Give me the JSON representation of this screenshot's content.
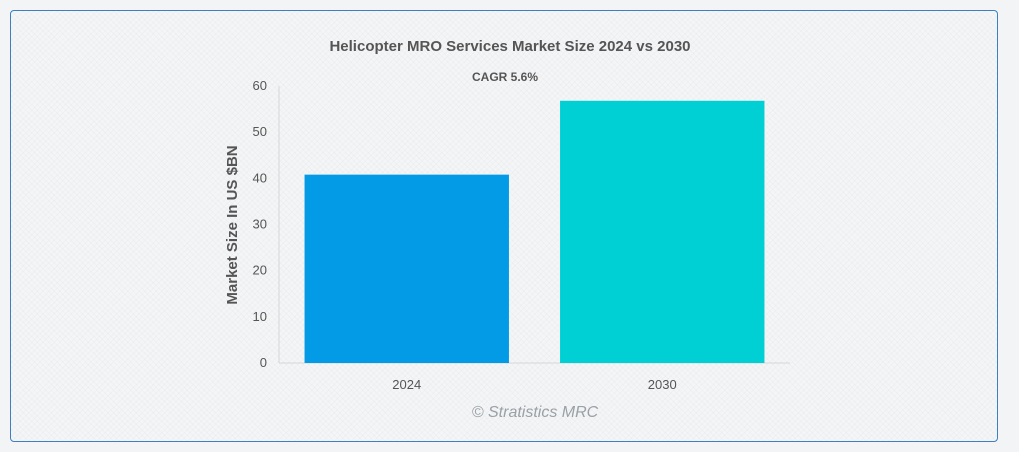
{
  "chart_data": {
    "type": "bar",
    "title": "Helicopter MRO Services Market Size 2024 vs 2030",
    "subtitle": "CAGR 5.6%",
    "categories": [
      "2024",
      "2030"
    ],
    "values": [
      40.8,
      56.8
    ],
    "colors": [
      "#039be5",
      "#00d0d4"
    ],
    "ylabel": "Market Size In US $BN",
    "xlabel": "",
    "ylim": [
      0,
      60
    ],
    "yticks": [
      0,
      10,
      20,
      30,
      40,
      50,
      60
    ],
    "grid": false
  },
  "watermark": "© Stratistics MRC"
}
